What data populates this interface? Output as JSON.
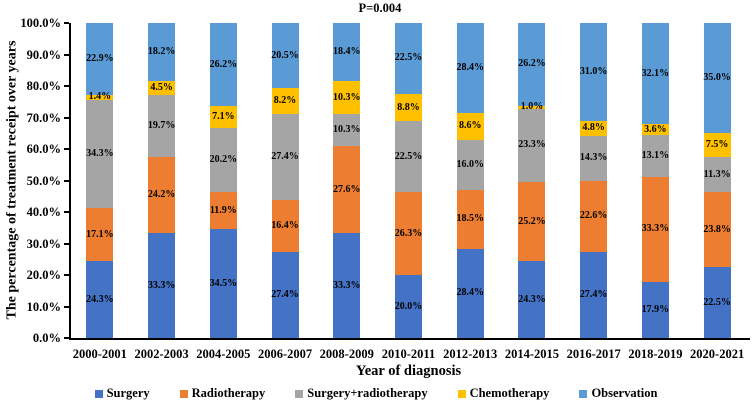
{
  "chart_data": {
    "type": "bar",
    "stacked": true,
    "title": "P=0.004",
    "xlabel": "Year of diagnosis",
    "ylabel": "The percentage of treatment receipt over years",
    "ylim": [
      0,
      100
    ],
    "ytick_labels": [
      "0.0%",
      "10.0%",
      "20.0%",
      "30.0%",
      "40.0%",
      "50.0%",
      "60.0%",
      "70.0%",
      "80.0%",
      "90.0%",
      "100.0%"
    ],
    "grid": false,
    "legend_position": "bottom",
    "categories": [
      "2000-2001",
      "2002-2003",
      "2004-2005",
      "2006-2007",
      "2008-2009",
      "2010-2011",
      "2012-2013",
      "2014-2015",
      "2016-2017",
      "2018-2019",
      "2020-2021"
    ],
    "series": [
      {
        "name": "Surgery",
        "color": "#4472C4",
        "values": [
          24.3,
          33.3,
          34.5,
          27.4,
          33.3,
          20.0,
          28.4,
          24.3,
          27.4,
          17.9,
          22.5
        ]
      },
      {
        "name": "Radiotherapy",
        "color": "#ED7D31",
        "values": [
          17.1,
          24.2,
          11.9,
          16.4,
          27.6,
          26.3,
          18.5,
          25.2,
          22.6,
          33.3,
          23.8
        ]
      },
      {
        "name": "Surgery+radiotherapy",
        "color": "#A5A5A5",
        "values": [
          34.3,
          19.7,
          20.2,
          27.4,
          10.3,
          22.5,
          16.0,
          23.3,
          14.3,
          13.1,
          11.3
        ]
      },
      {
        "name": "Chemotherapy",
        "color": "#FFC000",
        "values": [
          1.4,
          4.5,
          7.1,
          8.2,
          10.3,
          8.8,
          8.6,
          1.0,
          4.8,
          3.6,
          7.5
        ]
      },
      {
        "name": "Observation",
        "color": "#5B9BD5",
        "values": [
          22.9,
          18.2,
          26.2,
          20.5,
          18.4,
          22.5,
          28.4,
          26.2,
          31.0,
          32.1,
          35.0
        ]
      }
    ],
    "axis_color": "#000000",
    "label_color": "#000000"
  }
}
